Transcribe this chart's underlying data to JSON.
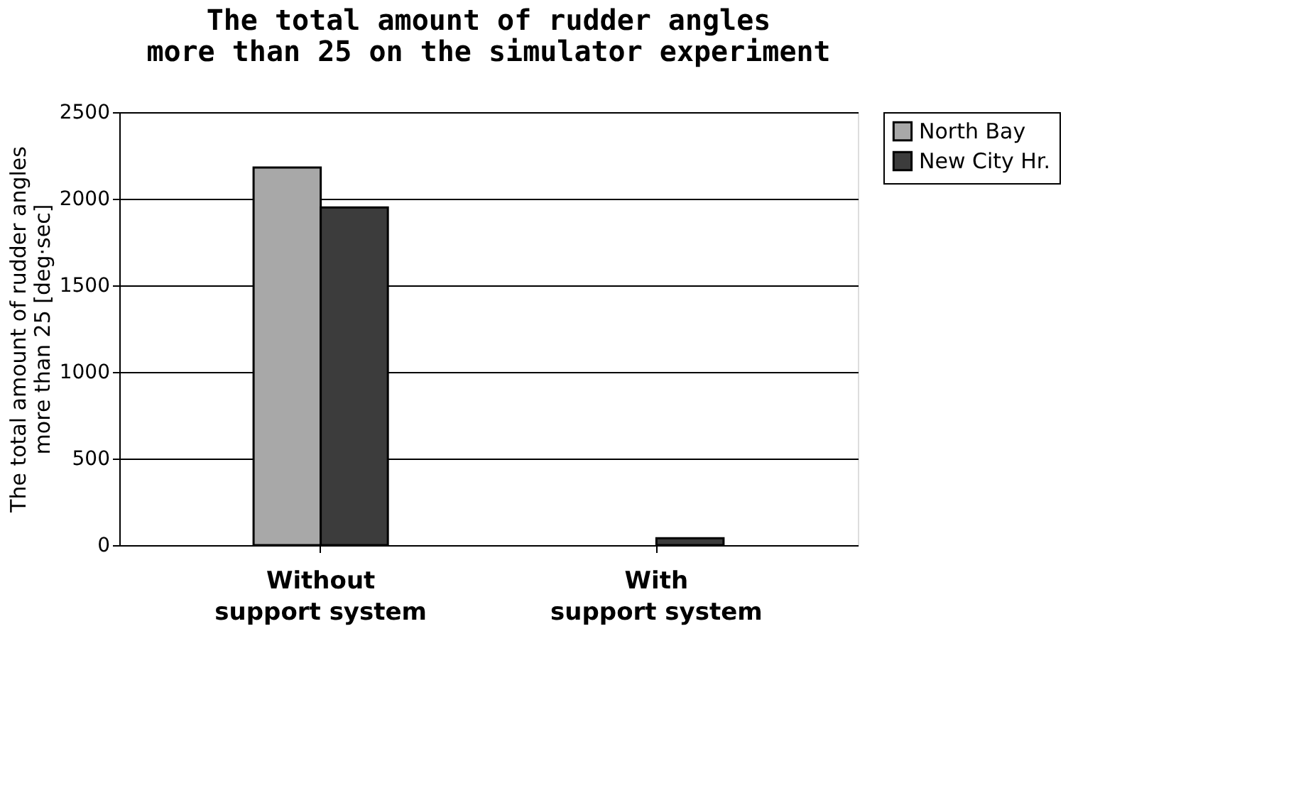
{
  "chart_data": {
    "type": "bar",
    "title": [
      "The total amount of rudder angles",
      "more than 25 on the simulator experiment"
    ],
    "ylabel": [
      "The total amount of rudder angles",
      "more than 25 [deg·sec]"
    ],
    "categories": [
      "Without support system",
      "With support system"
    ],
    "series": [
      {
        "name": "North Bay",
        "color": "#a8a8a8",
        "values": [
          2180,
          null
        ]
      },
      {
        "name": "New City Hr.",
        "color": "#3c3c3c",
        "values": [
          1950,
          40
        ]
      }
    ],
    "ylim": [
      0,
      2500
    ],
    "yticks": [
      0,
      500,
      1000,
      1500,
      2000,
      2500
    ],
    "grid": "y",
    "legend": "right"
  }
}
